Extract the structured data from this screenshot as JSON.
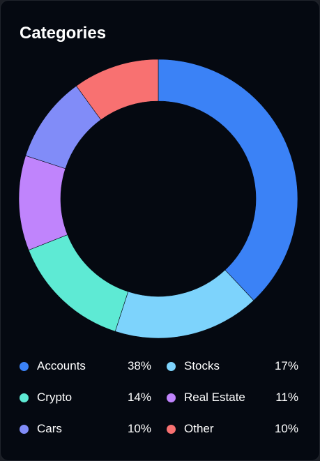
{
  "card": {
    "title": "Categories"
  },
  "chart_data": {
    "type": "pie",
    "variant": "donut",
    "title": "Categories",
    "start": "top, clockwise",
    "categories": [
      "Accounts",
      "Stocks",
      "Crypto",
      "Real Estate",
      "Cars",
      "Other"
    ],
    "values": [
      38,
      17,
      14,
      11,
      10,
      10
    ],
    "value_labels": [
      "38%",
      "17%",
      "14%",
      "11%",
      "10%",
      "10%"
    ],
    "colors": [
      "#3b82f6",
      "#7dd3fc",
      "#5eead4",
      "#c084fc",
      "#818cf8",
      "#f87171"
    ],
    "legend_placement": "bottom"
  }
}
